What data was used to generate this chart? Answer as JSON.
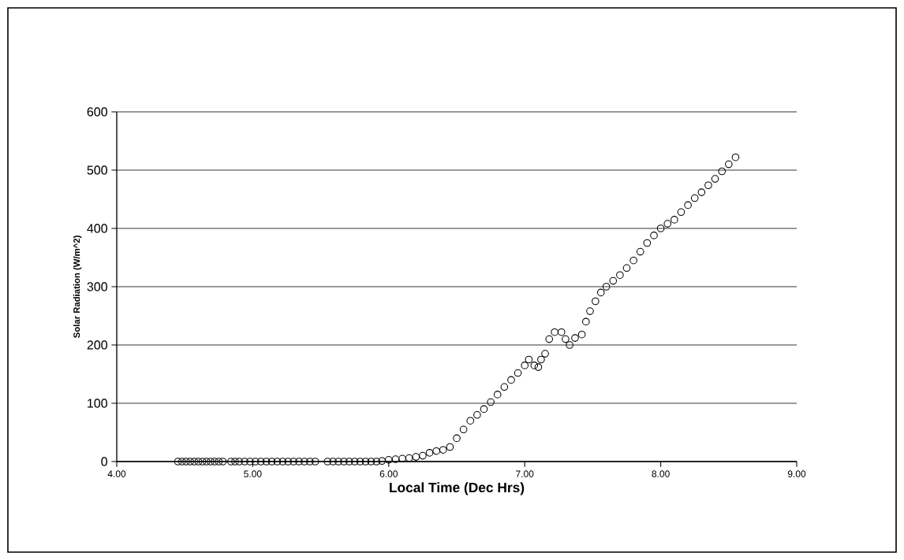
{
  "chart_data": {
    "type": "scatter",
    "xlabel": "Local Time (Dec Hrs)",
    "ylabel": "Solar Radiation (W/m^2)",
    "x": [
      4.45,
      4.48,
      4.51,
      4.54,
      4.57,
      4.6,
      4.63,
      4.66,
      4.69,
      4.72,
      4.75,
      4.78,
      4.84,
      4.87,
      4.9,
      4.94,
      4.98,
      5.02,
      5.06,
      5.1,
      5.14,
      5.18,
      5.22,
      5.26,
      5.3,
      5.34,
      5.38,
      5.42,
      5.46,
      5.55,
      5.59,
      5.63,
      5.67,
      5.71,
      5.75,
      5.79,
      5.83,
      5.87,
      5.91,
      5.95,
      6.0,
      6.05,
      6.1,
      6.15,
      6.2,
      6.25,
      6.3,
      6.35,
      6.4,
      6.45,
      6.5,
      6.55,
      6.6,
      6.65,
      6.7,
      6.75,
      6.8,
      6.85,
      6.9,
      6.95,
      7.0,
      7.03,
      7.07,
      7.1,
      7.12,
      7.15,
      7.18,
      7.22,
      7.27,
      7.3,
      7.33,
      7.37,
      7.42,
      7.45,
      7.48,
      7.52,
      7.56,
      7.6,
      7.65,
      7.7,
      7.75,
      7.8,
      7.85,
      7.9,
      7.95,
      8.0,
      8.05,
      8.1,
      8.15,
      8.2,
      8.25,
      8.3,
      8.35,
      8.4,
      8.45,
      8.5,
      8.55
    ],
    "values": [
      0,
      0,
      0,
      0,
      0,
      0,
      0,
      0,
      0,
      0,
      0,
      0,
      0,
      0,
      0,
      0,
      0,
      0,
      0,
      0,
      0,
      0,
      0,
      0,
      0,
      0,
      0,
      0,
      0,
      0,
      0,
      0,
      0,
      0,
      0,
      0,
      0,
      0,
      0,
      1,
      3,
      4,
      5,
      6,
      8,
      10,
      15,
      18,
      20,
      25,
      40,
      55,
      70,
      80,
      90,
      102,
      115,
      128,
      140,
      152,
      165,
      175,
      165,
      162,
      175,
      185,
      210,
      222,
      222,
      210,
      200,
      212,
      218,
      240,
      258,
      275,
      290,
      300,
      310,
      320,
      332,
      345,
      360,
      375,
      388,
      400,
      408,
      415,
      428,
      440,
      452,
      462,
      474,
      485,
      498,
      510,
      522
    ],
    "color": "#000000",
    "marker": "circle",
    "grid": "y",
    "xlim": [
      4,
      9
    ],
    "ylim": [
      0,
      600
    ],
    "xticks": [
      {
        "value": 4,
        "label": "4.00"
      },
      {
        "value": 5,
        "label": "5.00"
      },
      {
        "value": 6,
        "label": "6.00"
      },
      {
        "value": 7,
        "label": "7.00"
      },
      {
        "value": 8,
        "label": "8.00"
      },
      {
        "value": 9,
        "label": "9.00"
      }
    ],
    "yticks": [
      0,
      100,
      200,
      300,
      400,
      500,
      600
    ]
  }
}
